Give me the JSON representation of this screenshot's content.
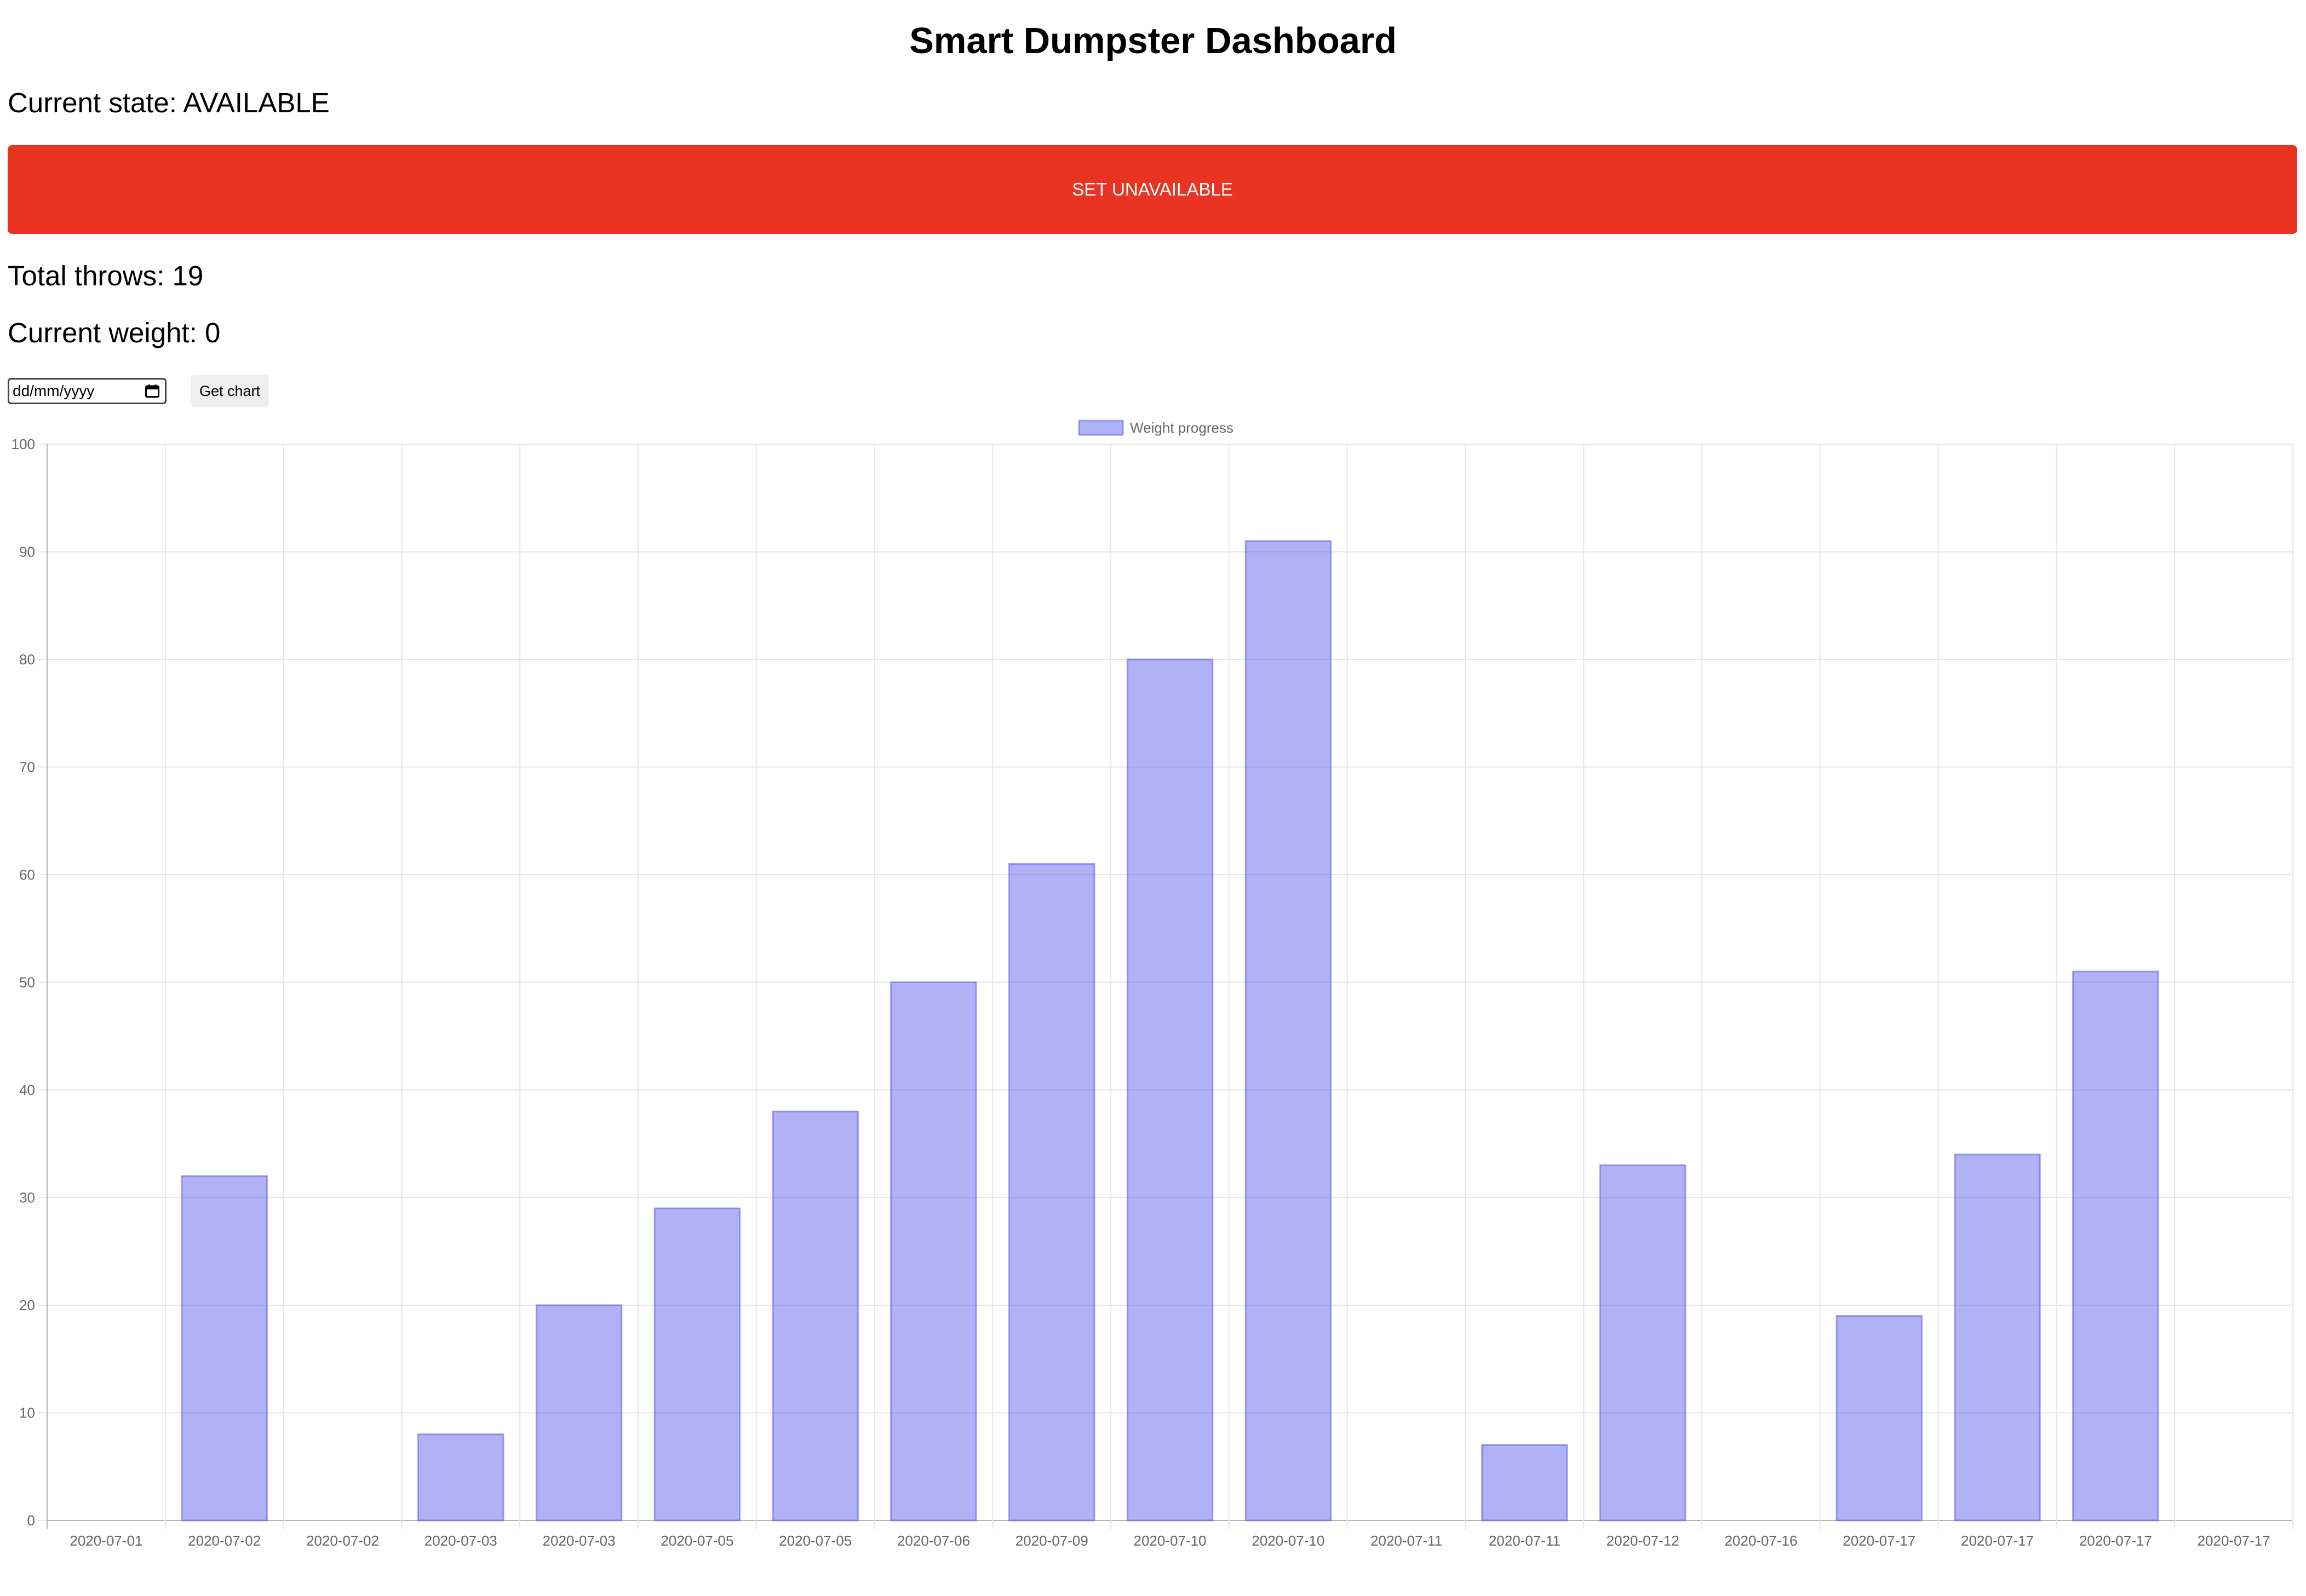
{
  "page": {
    "title": "Smart Dumpster Dashboard",
    "state_label": "Current state:",
    "state_value": "AVAILABLE",
    "toggle_button_label": "SET UNAVAILABLE",
    "throws_label": "Total throws:",
    "throws_value": "19",
    "weight_label": "Current weight:",
    "weight_value": "0",
    "date_placeholder": "dd/mm/yyyy",
    "get_chart_label": "Get chart"
  },
  "colors": {
    "button_red": "#e93423",
    "bar_fill": "rgba(100,100,235,0.5)",
    "bar_stroke": "rgba(100,100,235,0.6)"
  },
  "chart_data": {
    "type": "bar",
    "categories": [
      "2020-07-01",
      "2020-07-02",
      "2020-07-02",
      "2020-07-03",
      "2020-07-03",
      "2020-07-05",
      "2020-07-05",
      "2020-07-06",
      "2020-07-09",
      "2020-07-10",
      "2020-07-10",
      "2020-07-11",
      "2020-07-11",
      "2020-07-12",
      "2020-07-16",
      "2020-07-17",
      "2020-07-17",
      "2020-07-17",
      "2020-07-17"
    ],
    "series": [
      {
        "name": "Weight progress",
        "values": [
          0,
          32,
          0,
          8,
          20,
          29,
          38,
          50,
          61,
          80,
          91,
          0,
          7,
          33,
          0,
          19,
          34,
          51,
          0
        ]
      }
    ],
    "ylim": [
      0,
      100
    ],
    "yticks": [
      "0",
      "10",
      "20",
      "30",
      "40",
      "50",
      "60",
      "70",
      "80",
      "90",
      "100"
    ],
    "grid": true,
    "legend_position": "top-center"
  }
}
